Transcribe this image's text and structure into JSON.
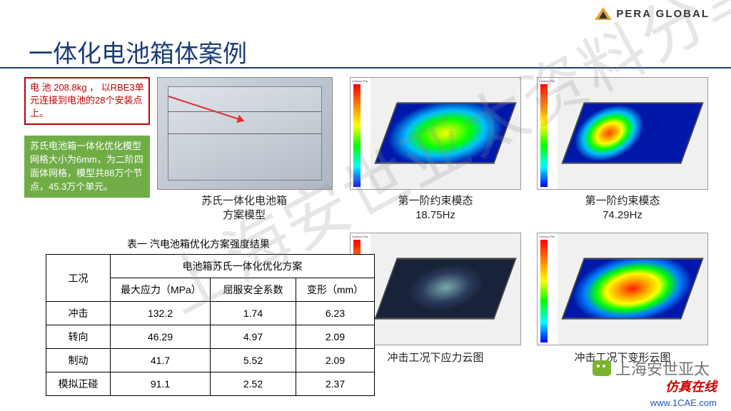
{
  "brand": {
    "name": "PERA GLOBAL"
  },
  "title": "一体化电池箱体案例",
  "callouts": {
    "red": "电 池 208.8kg ， 以RBE3单元连接到电池的28个安装点上。",
    "green": "苏氏电池箱一体化优化模型网格大小为6mm，为二阶四面体网格，模型共88万个节点，45.3万个单元。"
  },
  "captions": {
    "cad_l1": "苏氏一体化电池箱",
    "cad_l2": "方案模型",
    "mode1_l1": "第一阶约束模态",
    "mode1_l2": "18.75Hz",
    "mode2_l1": "第一阶约束模态",
    "mode2_l2": "74.29Hz",
    "stress": "冲击工况下应力云图",
    "deform": "冲击工况下变形云图"
  },
  "table": {
    "title": "表一  汽电池箱优化方案强度结果",
    "head_case": "工况",
    "head_span": "电池箱苏氏一体化优化方案",
    "h1": "最大应力（MPa）",
    "h2": "屈服安全系数",
    "h3": "变形（mm）",
    "rows": [
      {
        "c": "冲击",
        "v1": "132.2",
        "v2": "1.74",
        "v3": "6.23"
      },
      {
        "c": "转向",
        "v1": "46.29",
        "v2": "4.97",
        "v3": "2.09"
      },
      {
        "c": "制动",
        "v1": "41.7",
        "v2": "5.52",
        "v3": "2.09"
      },
      {
        "c": "模拟正碰",
        "v1": "91.1",
        "v2": "2.52",
        "v3": "2.37"
      }
    ],
    "col_widths": [
      "90px",
      "140px",
      "120px",
      "110px"
    ]
  },
  "watermark": {
    "big": "上海安世亚太资料分享",
    "small": "上海安世亚太"
  },
  "footer": {
    "brand": "仿真在线",
    "url": "www.1CAE.com"
  },
  "colors": {
    "title": "#1b3d78",
    "red": "#c00000",
    "green": "#70ad47"
  }
}
